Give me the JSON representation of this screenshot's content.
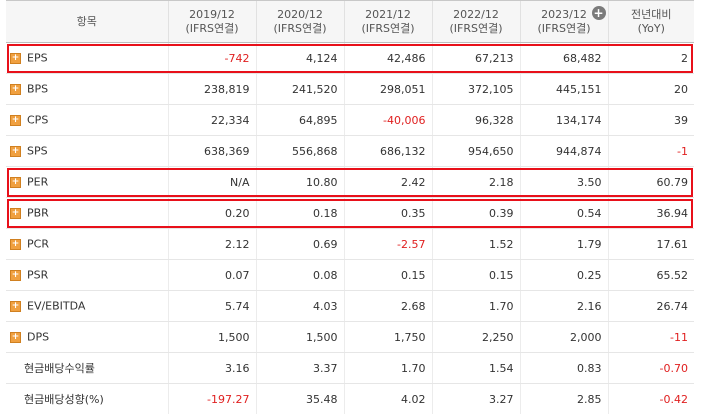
{
  "header": {
    "item_label": "항목",
    "columns": [
      {
        "period": "2019/12",
        "basis": "(IFRS연결)"
      },
      {
        "period": "2020/12",
        "basis": "(IFRS연결)"
      },
      {
        "period": "2021/12",
        "basis": "(IFRS연결)"
      },
      {
        "period": "2022/12",
        "basis": "(IFRS연결)"
      },
      {
        "period": "2023/12",
        "basis": "(IFRS연결)"
      }
    ],
    "last_column": {
      "line1": "전년대비",
      "line2": "(YoY)"
    },
    "add_icon": "plus-circle-icon"
  },
  "rows": [
    {
      "label": "EPS",
      "expandable": true,
      "highlighted": true,
      "values": [
        "-742",
        "4,124",
        "42,486",
        "67,213",
        "68,482",
        "2"
      ]
    },
    {
      "label": "BPS",
      "expandable": true,
      "highlighted": false,
      "values": [
        "238,819",
        "241,520",
        "298,051",
        "372,105",
        "445,151",
        "20"
      ]
    },
    {
      "label": "CPS",
      "expandable": true,
      "highlighted": false,
      "values": [
        "22,334",
        "64,895",
        "-40,006",
        "96,328",
        "134,174",
        "39"
      ]
    },
    {
      "label": "SPS",
      "expandable": true,
      "highlighted": false,
      "values": [
        "638,369",
        "556,868",
        "686,132",
        "954,650",
        "944,874",
        "-1"
      ]
    },
    {
      "label": "PER",
      "expandable": true,
      "highlighted": true,
      "values": [
        "N/A",
        "10.80",
        "2.42",
        "2.18",
        "3.50",
        "60.79"
      ]
    },
    {
      "label": "PBR",
      "expandable": true,
      "highlighted": true,
      "values": [
        "0.20",
        "0.18",
        "0.35",
        "0.39",
        "0.54",
        "36.94"
      ]
    },
    {
      "label": "PCR",
      "expandable": true,
      "highlighted": false,
      "values": [
        "2.12",
        "0.69",
        "-2.57",
        "1.52",
        "1.79",
        "17.61"
      ]
    },
    {
      "label": "PSR",
      "expandable": true,
      "highlighted": false,
      "values": [
        "0.07",
        "0.08",
        "0.15",
        "0.15",
        "0.25",
        "65.52"
      ]
    },
    {
      "label": "EV/EBITDA",
      "expandable": true,
      "highlighted": false,
      "values": [
        "5.74",
        "4.03",
        "2.68",
        "1.70",
        "2.16",
        "26.74"
      ]
    },
    {
      "label": "DPS",
      "expandable": true,
      "highlighted": false,
      "values": [
        "1,500",
        "1,500",
        "1,750",
        "2,250",
        "2,000",
        "-11"
      ]
    },
    {
      "label": "현금배당수익률",
      "expandable": false,
      "highlighted": false,
      "values": [
        "3.16",
        "3.37",
        "1.70",
        "1.54",
        "0.83",
        "-0.70"
      ]
    },
    {
      "label": "현금배당성향(%)",
      "expandable": false,
      "highlighted": false,
      "values": [
        "-197.27",
        "35.48",
        "4.02",
        "3.27",
        "2.85",
        "-0.42"
      ]
    }
  ],
  "colors": {
    "negative": "#e02020",
    "highlight_border": "#e8101a",
    "expand_icon": "#f0a040",
    "header_bg": "#f6f6f6"
  }
}
